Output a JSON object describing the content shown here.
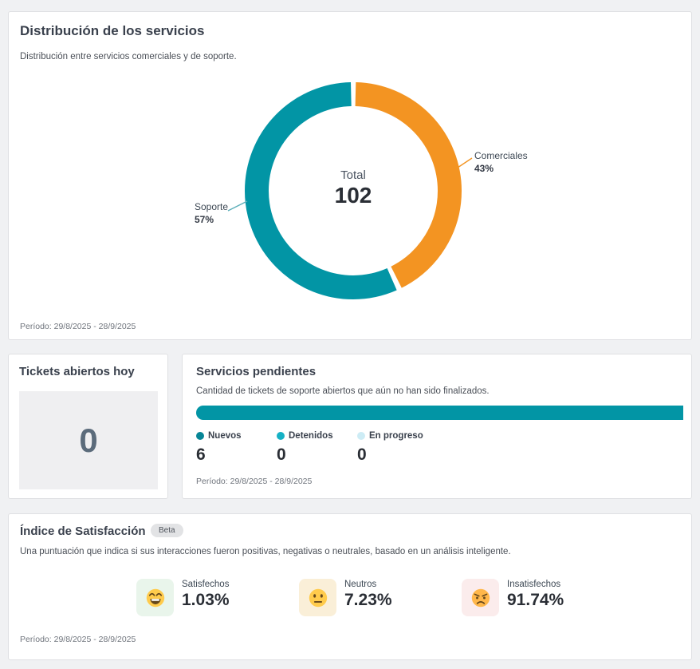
{
  "theme": {
    "teal": "#0295A5",
    "orange": "#F39422",
    "page_bg": "#F0F1F3",
    "card_border": "#DFE0E3"
  },
  "chart_data": [
    {
      "type": "pie",
      "donut": true,
      "title": "Distribución de los servicios",
      "labels": [
        "Comerciales",
        "Soporte"
      ],
      "values": [
        43,
        57
      ],
      "pct_labels": [
        "43%",
        "57%"
      ],
      "colors": [
        "#F39422",
        "#0295A5"
      ],
      "center_label": "Total",
      "center_value": "102",
      "legend_position": "callout-labels"
    },
    {
      "type": "bar",
      "orientation": "horizontal-stacked",
      "title": "Servicios pendientes",
      "categories": [
        "Nuevos",
        "Detenidos",
        "En progreso"
      ],
      "values": [
        6,
        0,
        0
      ],
      "colors": [
        "#0295A5",
        "#15B1C5",
        "#CDECF5"
      ]
    }
  ],
  "distribution_card": {
    "title": "Distribución de los servicios",
    "subtitle": "Distribución entre servicios comerciales y de soporte.",
    "period": "Período: 29/8/2025 - 28/9/2025"
  },
  "tickets_card": {
    "title": "Tickets abiertos hoy",
    "value": "0"
  },
  "pending_card": {
    "title": "Servicios pendientes",
    "subtitle": "Cantidad de tickets de soporte abiertos que aún no han sido finalizados.",
    "period": "Período: 29/8/2025 - 28/9/2025",
    "legend": [
      {
        "label": "Nuevos",
        "value": "6",
        "color": "#078697"
      },
      {
        "label": "Detenidos",
        "value": "0",
        "color": "#15B1C5"
      },
      {
        "label": "En progreso",
        "value": "0",
        "color": "#CDECF5"
      }
    ]
  },
  "satisfaction_card": {
    "title": "Índice de Satisfacción",
    "badge": "Beta",
    "subtitle": "Una puntuación que indica si sus interacciones fueron positivas, negativas o neutrales, basado en un análisis inteligente.",
    "period": "Período: 29/8/2025 - 28/9/2025",
    "stats": [
      {
        "emoji": "grinning-face",
        "label": "Satisfechos",
        "value": "1.03%",
        "box_color": "#E9F5EB"
      },
      {
        "emoji": "neutral-face",
        "label": "Neutros",
        "value": "7.23%",
        "box_color": "#FAEFD8"
      },
      {
        "emoji": "angry-face",
        "label": "Insatisfechos",
        "value": "91.74%",
        "box_color": "#FBECEC"
      }
    ]
  }
}
